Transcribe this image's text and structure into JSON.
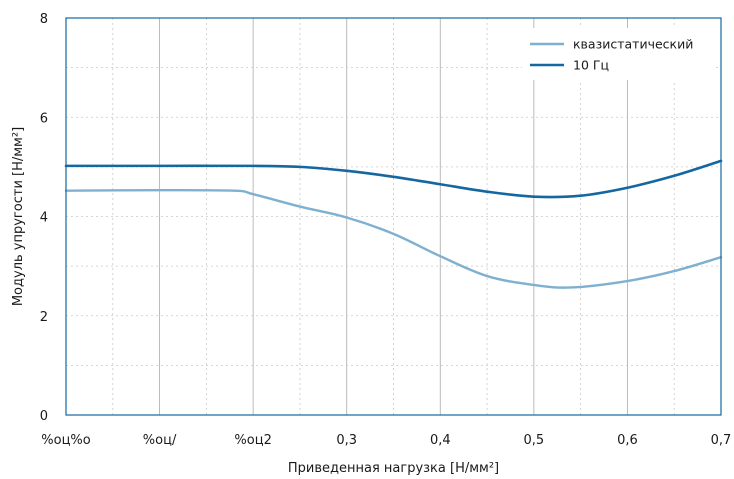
{
  "chart_data": {
    "type": "line",
    "title": "",
    "xlabel": "Приведенная нагрузка [Н/мм²]",
    "ylabel": "Модуль упругости [Н/мм²]",
    "x_tick_labels": [
      "%оц%о",
      "%оц/",
      "%оц2",
      "0,3",
      "0,4",
      "0,5",
      "0,6",
      "0,7"
    ],
    "y_tick_labels": [
      "0",
      "2",
      "4",
      "6",
      "8"
    ],
    "xlim": [
      0,
      0.7
    ],
    "ylim": [
      0,
      8
    ],
    "grid": true,
    "legend_position": "top-right",
    "series": [
      {
        "name": "квазистатический",
        "color": "#7fb0d0",
        "points": [
          [
            0.0,
            4.52
          ],
          [
            0.1,
            4.53
          ],
          [
            0.18,
            4.52
          ],
          [
            0.2,
            4.45
          ],
          [
            0.25,
            4.2
          ],
          [
            0.3,
            3.98
          ],
          [
            0.35,
            3.65
          ],
          [
            0.4,
            3.2
          ],
          [
            0.45,
            2.8
          ],
          [
            0.5,
            2.62
          ],
          [
            0.54,
            2.57
          ],
          [
            0.6,
            2.7
          ],
          [
            0.65,
            2.9
          ],
          [
            0.7,
            3.18
          ]
        ]
      },
      {
        "name": "10 Гц",
        "color": "#1567a0",
        "points": [
          [
            0.0,
            5.02
          ],
          [
            0.1,
            5.02
          ],
          [
            0.2,
            5.02
          ],
          [
            0.25,
            5.0
          ],
          [
            0.3,
            4.92
          ],
          [
            0.35,
            4.8
          ],
          [
            0.4,
            4.65
          ],
          [
            0.45,
            4.5
          ],
          [
            0.5,
            4.4
          ],
          [
            0.55,
            4.42
          ],
          [
            0.6,
            4.58
          ],
          [
            0.65,
            4.82
          ],
          [
            0.7,
            5.12
          ]
        ]
      }
    ]
  }
}
